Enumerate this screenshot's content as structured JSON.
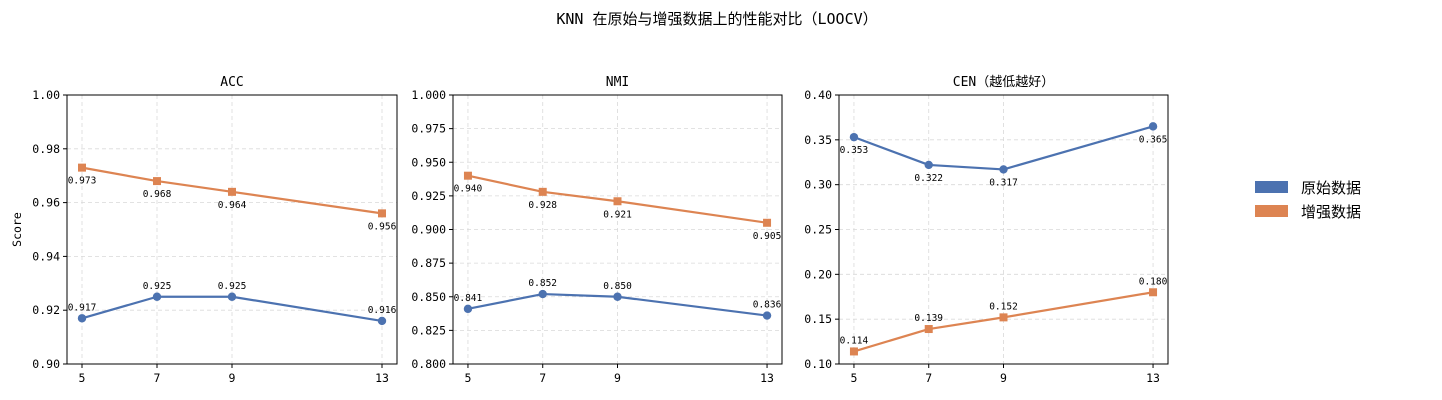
{
  "suptitle": "KNN 在原始与增强数据上的性能对比（LOOCV）",
  "colors": {
    "original": "#4c72b0",
    "augmented": "#dd8452"
  },
  "legend": {
    "placement": "right",
    "items": [
      {
        "label": "原始数据",
        "color": "#4c72b0"
      },
      {
        "label": "增强数据",
        "color": "#dd8452"
      }
    ]
  },
  "chart_data": [
    {
      "type": "line",
      "title": "ACC",
      "xlabel": "",
      "ylabel": "Score",
      "x": [
        5,
        7,
        9,
        13
      ],
      "xticks": [
        "5",
        "7",
        "9",
        "13"
      ],
      "ylim": [
        0.9,
        1.0
      ],
      "yticks": [
        "0.90",
        "0.92",
        "0.94",
        "0.96",
        "0.98",
        "1.00"
      ],
      "grid": true,
      "series": [
        {
          "name": "原始数据",
          "marker": "circle",
          "values": [
            0.917,
            0.925,
            0.925,
            0.916
          ],
          "labels": [
            "0.917",
            "0.925",
            "0.925",
            "0.916"
          ]
        },
        {
          "name": "增强数据",
          "marker": "square",
          "values": [
            0.973,
            0.968,
            0.964,
            0.956
          ],
          "labels": [
            "0.973",
            "0.968",
            "0.964",
            "0.956"
          ]
        }
      ]
    },
    {
      "type": "line",
      "title": "NMI",
      "xlabel": "",
      "ylabel": "",
      "x": [
        5,
        7,
        9,
        13
      ],
      "xticks": [
        "5",
        "7",
        "9",
        "13"
      ],
      "ylim": [
        0.8,
        1.0
      ],
      "yticks": [
        "0.800",
        "0.825",
        "0.850",
        "0.875",
        "0.900",
        "0.925",
        "0.950",
        "0.975",
        "1.000"
      ],
      "grid": true,
      "series": [
        {
          "name": "原始数据",
          "marker": "circle",
          "values": [
            0.841,
            0.852,
            0.85,
            0.836
          ],
          "labels": [
            "0.841",
            "0.852",
            "0.850",
            "0.836"
          ]
        },
        {
          "name": "增强数据",
          "marker": "square",
          "values": [
            0.94,
            0.928,
            0.921,
            0.905
          ],
          "labels": [
            "0.940",
            "0.928",
            "0.921",
            "0.905"
          ]
        }
      ]
    },
    {
      "type": "line",
      "title": "CEN（越低越好）",
      "xlabel": "",
      "ylabel": "",
      "x": [
        5,
        7,
        9,
        13
      ],
      "xticks": [
        "5",
        "7",
        "9",
        "13"
      ],
      "ylim": [
        0.1,
        0.4
      ],
      "yticks": [
        "0.10",
        "0.15",
        "0.20",
        "0.25",
        "0.30",
        "0.35",
        "0.40"
      ],
      "grid": true,
      "series": [
        {
          "name": "原始数据",
          "marker": "circle",
          "values": [
            0.353,
            0.322,
            0.317,
            0.365
          ],
          "labels": [
            "0.353",
            "0.322",
            "0.317",
            "0.365"
          ]
        },
        {
          "name": "增强数据",
          "marker": "square",
          "values": [
            0.114,
            0.139,
            0.152,
            0.18
          ],
          "labels": [
            "0.114",
            "0.139",
            "0.152",
            "0.180"
          ]
        }
      ]
    }
  ]
}
